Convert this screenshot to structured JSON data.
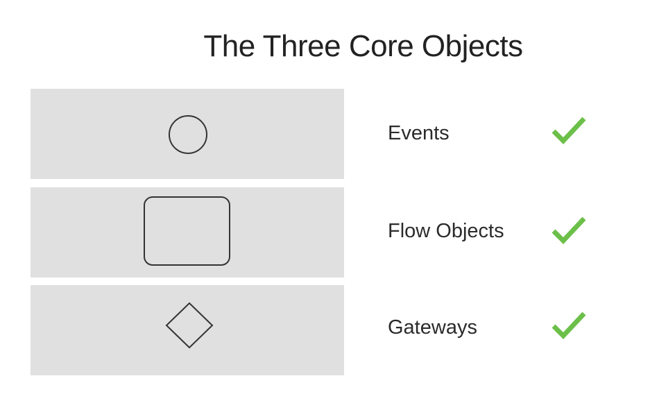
{
  "slide": {
    "title": "The Three Core Objects"
  },
  "rows": [
    {
      "label": "Events",
      "shape": "circle-icon",
      "checked": true
    },
    {
      "label": "Flow Objects",
      "shape": "rounded-rectangle-icon",
      "checked": true
    },
    {
      "label": "Gateways",
      "shape": "diamond-icon",
      "checked": true
    }
  ],
  "colors": {
    "panel": "#e0e0e0",
    "shape_stroke": "#333333",
    "check": "#6cc04a",
    "text": "#2b2b2b"
  }
}
